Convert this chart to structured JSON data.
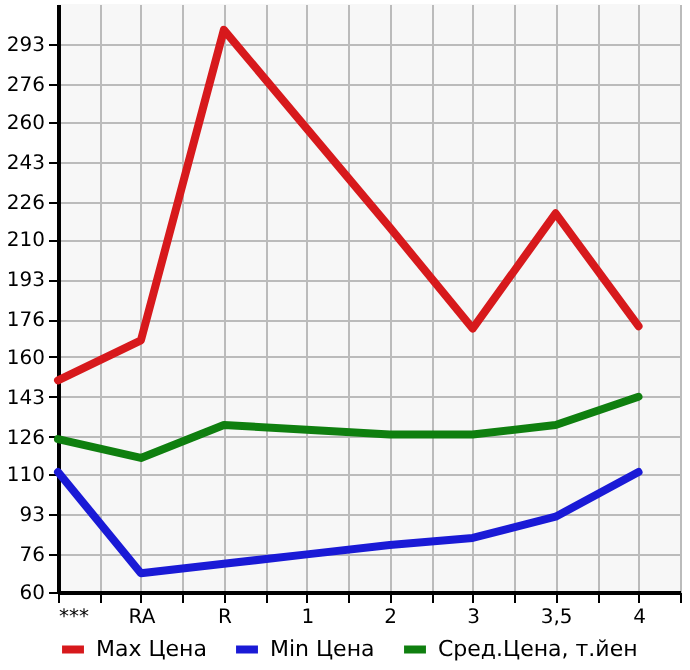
{
  "chart_data": {
    "type": "line",
    "categories": [
      "***",
      "RA",
      "R",
      "1",
      "2",
      "3",
      "3,5",
      "4"
    ],
    "series": [
      {
        "name": "Max Цена",
        "color": "#d7191c",
        "values": [
          150,
          167,
          299,
          257,
          215,
          172,
          221,
          173
        ]
      },
      {
        "name": "Min Цена",
        "color": "#1a1ad6",
        "values": [
          111,
          68,
          72,
          76,
          80,
          83,
          92,
          111
        ]
      },
      {
        "name": "Сред.Цена, т.йен",
        "color": "#0f7f0f",
        "values": [
          125,
          117,
          131,
          129,
          127,
          127,
          131,
          143
        ]
      }
    ],
    "ylim": [
      60,
      310
    ],
    "yticks": [
      60,
      76,
      93,
      110,
      126,
      143,
      160,
      176,
      193,
      210,
      226,
      243,
      260,
      276,
      293
    ],
    "grid": true,
    "legend": "bottom",
    "marker": "none",
    "line_style": "solid"
  }
}
